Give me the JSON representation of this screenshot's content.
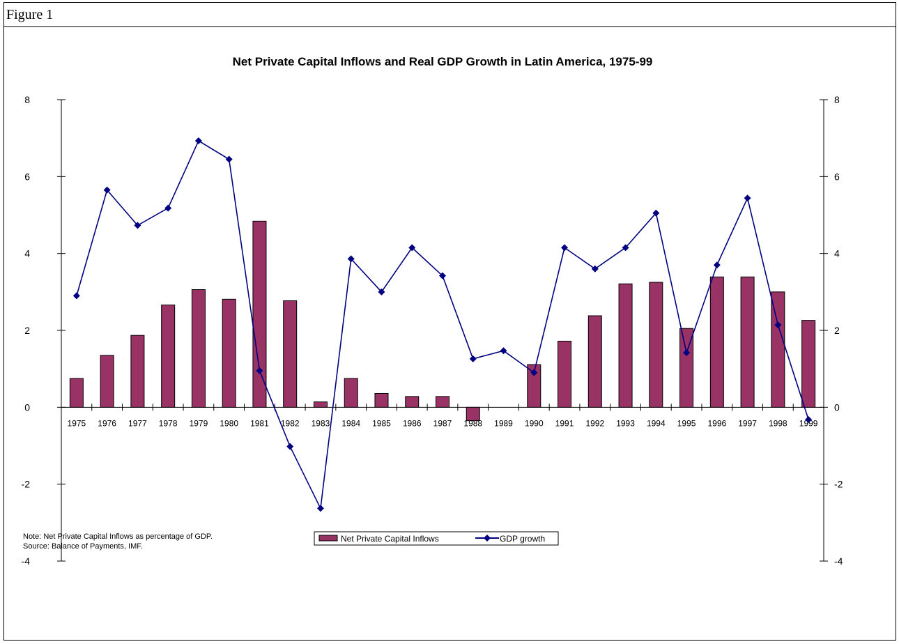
{
  "figure_label": "Figure 1",
  "notes": {
    "line1": "Note: Net Private Capital Inflows as percentage of GDP.",
    "line2": "Source: Balance of Payments, IMF."
  },
  "colors": {
    "bars": "#993366",
    "line": "#000080",
    "frame": "#000000"
  },
  "chart_data": {
    "type": "bar",
    "title": "Net Private Capital Inflows and Real GDP Growth in Latin America, 1975-99",
    "xlabel": "",
    "ylabel": "",
    "ylim": [
      -4,
      8
    ],
    "y2lim": [
      -4,
      8
    ],
    "yticks": [
      "-4",
      "-2",
      "0",
      "2",
      "4",
      "6",
      "8"
    ],
    "grid": false,
    "legend_position": "bottom-center",
    "categories": [
      "1975",
      "1976",
      "1977",
      "1978",
      "1979",
      "1980",
      "1981",
      "1982",
      "1983",
      "1984",
      "1985",
      "1986",
      "1987",
      "1988",
      "1989",
      "1990",
      "1991",
      "1992",
      "1993",
      "1994",
      "1995",
      "1996",
      "1997",
      "1998",
      "1999"
    ],
    "series": [
      {
        "name": "Net Private Capital Inflows",
        "type": "bar",
        "values": [
          0.75,
          1.35,
          1.87,
          2.66,
          3.06,
          2.81,
          4.84,
          2.77,
          0.14,
          0.75,
          0.36,
          0.28,
          0.28,
          -0.35,
          0.0,
          1.11,
          1.72,
          2.38,
          3.21,
          3.25,
          2.05,
          3.39,
          3.39,
          3.0,
          2.26
        ]
      },
      {
        "name": "GDP growth",
        "type": "line",
        "values": [
          2.9,
          5.65,
          4.73,
          5.18,
          6.93,
          6.45,
          0.95,
          -1.02,
          -2.63,
          3.86,
          3.0,
          4.15,
          3.42,
          1.26,
          1.47,
          0.9,
          4.15,
          3.6,
          4.15,
          5.05,
          1.42,
          3.7,
          5.44,
          2.14,
          -0.32
        ]
      }
    ]
  }
}
